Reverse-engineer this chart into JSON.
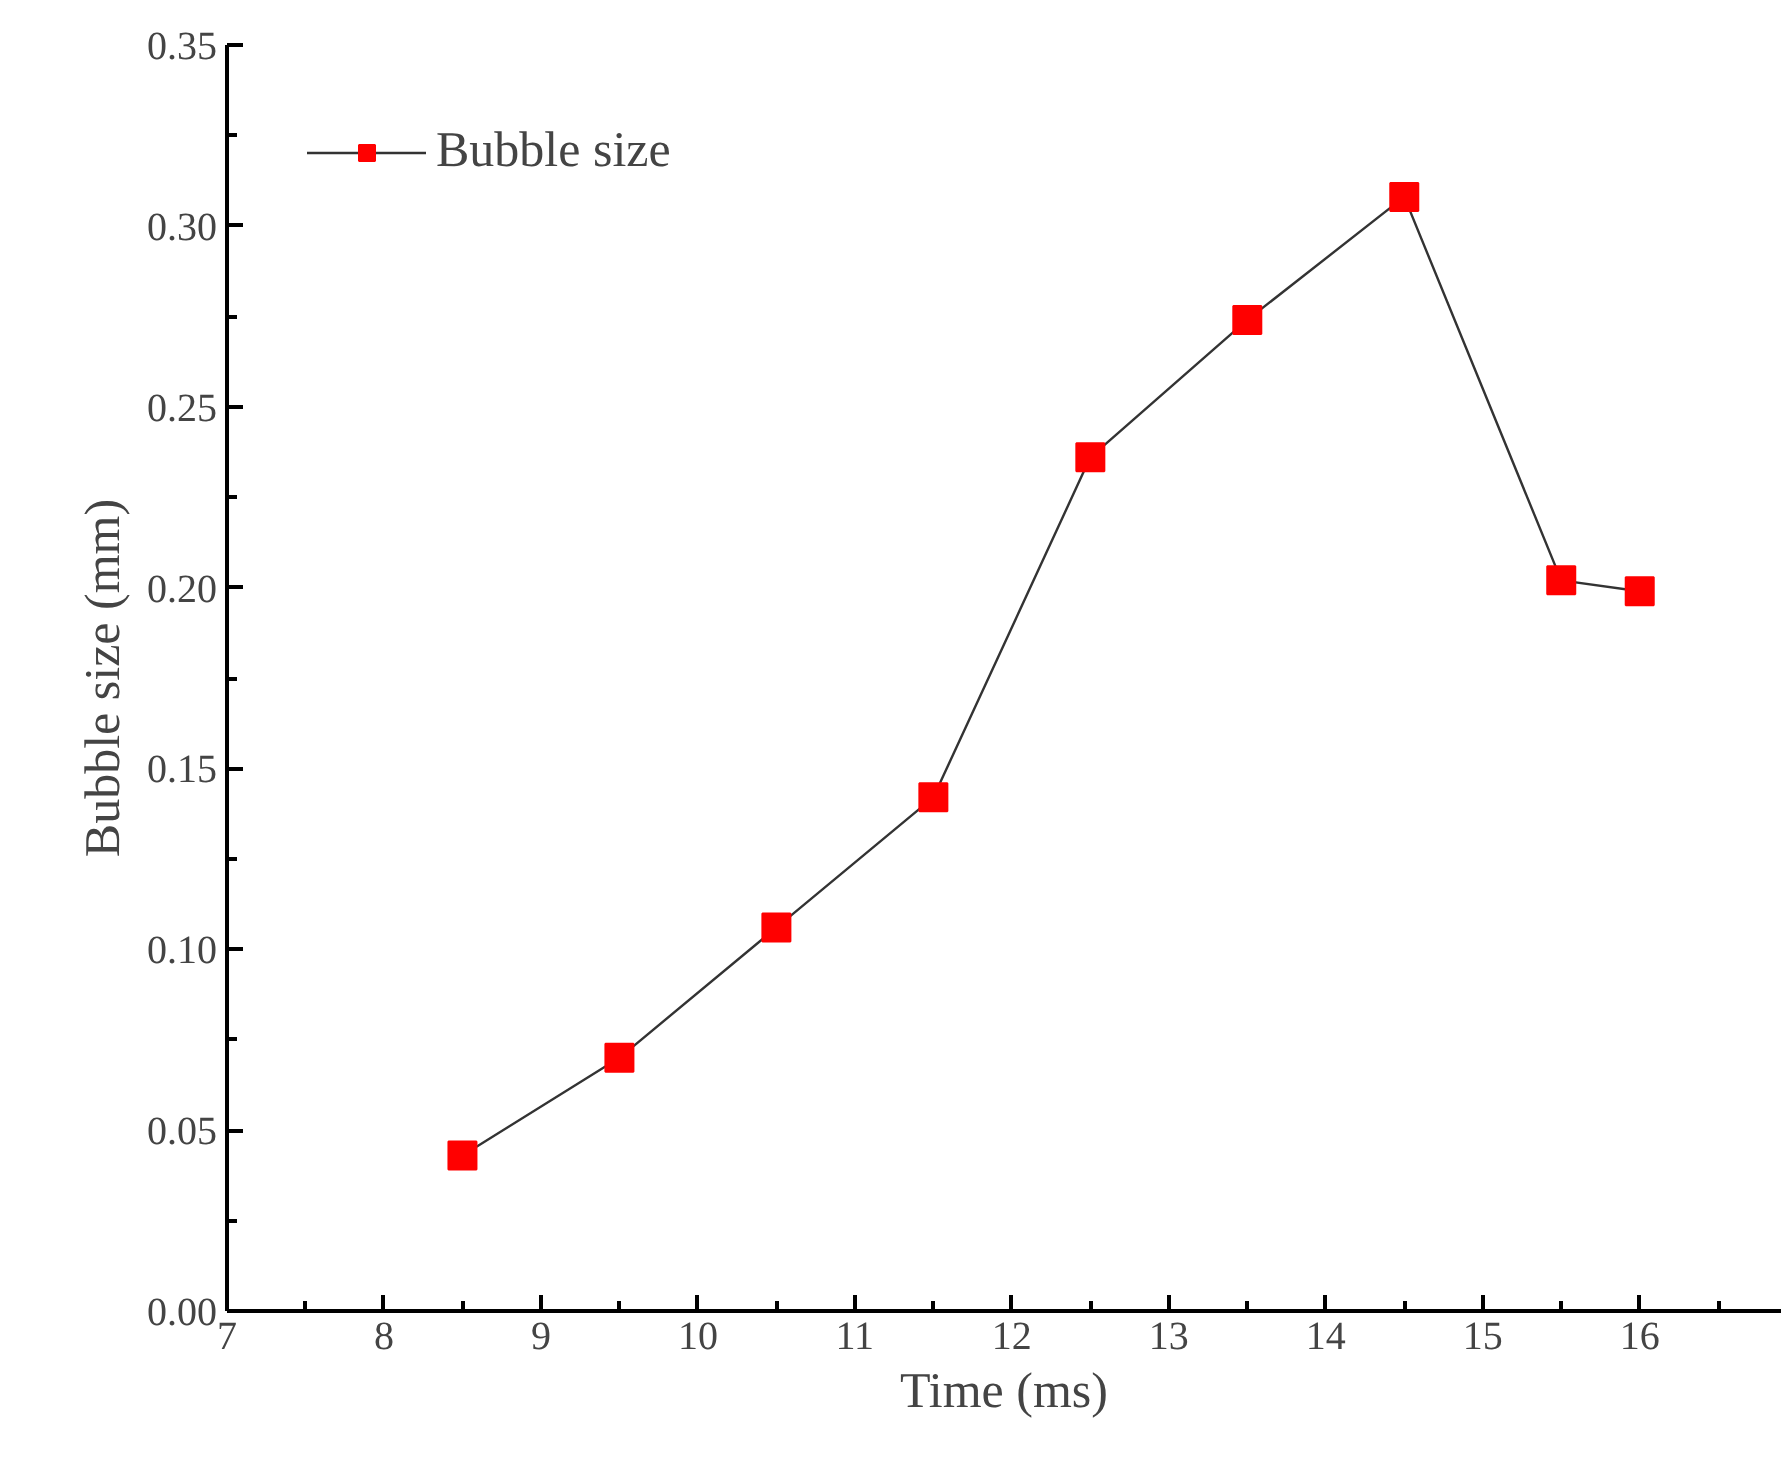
{
  "chart_data": {
    "type": "line",
    "xlabel": "Time (ms)",
    "ylabel": "Bubble size (mm)",
    "x": [
      8.5,
      9.5,
      10.5,
      11.5,
      12.5,
      13.5,
      14.5,
      15.5,
      16
    ],
    "series": [
      {
        "name": "Bubble size",
        "color": "#ff0000",
        "values": [
          0.043,
          0.07,
          0.106,
          0.142,
          0.236,
          0.274,
          0.308,
          0.202,
          0.199
        ]
      }
    ],
    "xlim": [
      7,
      16.9
    ],
    "xticks": [
      7,
      8,
      9,
      10,
      11,
      12,
      13,
      14,
      15,
      16
    ],
    "ylim": [
      0,
      0.35
    ],
    "yticks": [
      {
        "value": 0,
        "label": "0.00"
      },
      {
        "value": 0.05,
        "label": "0.05"
      },
      {
        "value": 0.1,
        "label": "0.10"
      },
      {
        "value": 0.15,
        "label": "0.15"
      },
      {
        "value": 0.2,
        "label": "0.20"
      },
      {
        "value": 0.25,
        "label": "0.25"
      },
      {
        "value": 0.3,
        "label": "0.30"
      },
      {
        "value": 0.35,
        "label": "0.35"
      }
    ],
    "marker": "square",
    "line_style": "solid",
    "grid": false,
    "legend": "top left"
  }
}
